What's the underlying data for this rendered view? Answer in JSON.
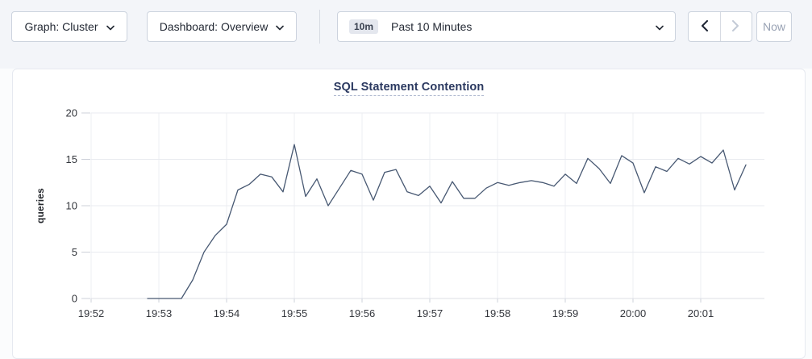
{
  "toolbar": {
    "graph_dropdown": {
      "label": "Graph: Cluster"
    },
    "dashboard_dropdown": {
      "label": "Dashboard: Overview"
    },
    "time_range": {
      "badge": "10m",
      "label": "Past 10 Minutes"
    },
    "now_button": {
      "label": "Now"
    }
  },
  "chart": {
    "title": "SQL Statement Contention",
    "ylabel": "queries"
  },
  "colors": {
    "line": "#475872",
    "title": "#2b3960",
    "grid": "#e9ebf0",
    "toolbar_band": "#f3f5f9"
  },
  "chart_data": {
    "type": "line",
    "title": "SQL Statement Contention",
    "xlabel": "",
    "ylabel": "queries",
    "ylim": [
      0,
      20
    ],
    "y_ticks": [
      0,
      5,
      10,
      15,
      20
    ],
    "x_ticks": [
      "19:52",
      "19:53",
      "19:54",
      "19:55",
      "19:56",
      "19:57",
      "19:58",
      "19:59",
      "20:00",
      "20:01"
    ],
    "grid": true,
    "legend": "none",
    "line_color": "#475872",
    "series": [
      {
        "name": "queries",
        "x": [
          "19:52:50",
          "19:53:00",
          "19:53:10",
          "19:53:20",
          "19:53:30",
          "19:53:40",
          "19:53:50",
          "19:54:00",
          "19:54:10",
          "19:54:20",
          "19:54:30",
          "19:54:40",
          "19:54:50",
          "19:55:00",
          "19:55:10",
          "19:55:20",
          "19:55:30",
          "19:55:40",
          "19:55:50",
          "19:56:00",
          "19:56:10",
          "19:56:20",
          "19:56:30",
          "19:56:40",
          "19:56:50",
          "19:57:00",
          "19:57:10",
          "19:57:20",
          "19:57:30",
          "19:57:40",
          "19:57:50",
          "19:58:00",
          "19:58:10",
          "19:58:20",
          "19:58:30",
          "19:58:40",
          "19:58:50",
          "19:59:00",
          "19:59:10",
          "19:59:20",
          "19:59:30",
          "19:59:40",
          "19:59:50",
          "20:00:00",
          "20:00:10",
          "20:00:20",
          "20:00:30",
          "20:00:40",
          "20:00:50",
          "20:01:00",
          "20:01:10",
          "20:01:20",
          "20:01:30",
          "20:01:40"
        ],
        "values": [
          0,
          0,
          0,
          0,
          2,
          5,
          6.8,
          8,
          11.7,
          12.3,
          13.4,
          13.1,
          11.5,
          16.6,
          11,
          12.9,
          10,
          11.9,
          13.8,
          13.4,
          10.6,
          13.6,
          13.9,
          11.5,
          11.1,
          12.1,
          10.3,
          12.6,
          10.8,
          10.8,
          11.9,
          12.5,
          12.2,
          12.5,
          12.7,
          12.5,
          12.1,
          13.4,
          12.4,
          15.1,
          14,
          12.4,
          15.4,
          14.6,
          11.4,
          14.2,
          13.7,
          15.1,
          14.5,
          15.3,
          14.6,
          16,
          11.7,
          14.4
        ]
      }
    ]
  }
}
